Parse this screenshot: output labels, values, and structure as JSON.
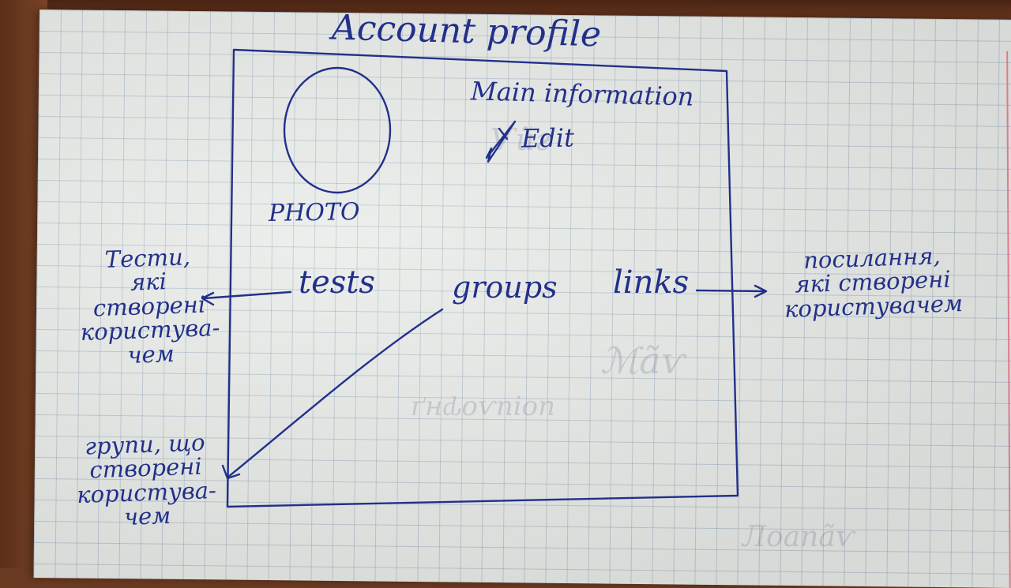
{
  "sketch": {
    "title": "Account profile",
    "photo_label": "PHOTO",
    "main_info": "Main information",
    "edit_label": "Edit",
    "nav": {
      "tests": "tests",
      "groups": "groups",
      "links": "links"
    },
    "annotations": {
      "tests_note": [
        "Тести,",
        "які",
        "створені",
        "користува-",
        "чем"
      ],
      "groups_note": [
        "групи, що",
        "створені",
        "користува-",
        "чем"
      ],
      "links_note": [
        "посилання,",
        "які створені",
        "користувачем"
      ]
    },
    "icons": {
      "edit": "pencil-icon",
      "photo": "avatar-circle-icon",
      "arrows": "arrow-icon"
    },
    "colors": {
      "ink": "#22308a",
      "paper": "#e9ece9",
      "grid": "#8ca0b4",
      "margin": "#e07a8a"
    }
  }
}
